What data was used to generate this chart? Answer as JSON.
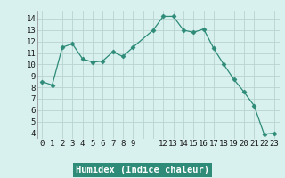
{
  "xlabel": "Humidex (Indice chaleur)",
  "x": [
    0,
    1,
    2,
    3,
    4,
    5,
    6,
    7,
    8,
    9,
    11,
    12,
    13,
    14,
    15,
    16,
    17,
    18,
    19,
    20,
    21,
    22,
    23
  ],
  "y": [
    8.5,
    8.2,
    11.5,
    11.8,
    10.5,
    10.2,
    10.3,
    11.1,
    10.7,
    11.5,
    13.0,
    14.2,
    14.2,
    13.0,
    12.8,
    13.1,
    11.4,
    10.0,
    8.7,
    7.6,
    6.4,
    3.9,
    4.0
  ],
  "line_color": "#2d8b78",
  "marker": "D",
  "marker_size": 2.5,
  "bg_color": "#d8f0ee",
  "grid_color": "#b8d4d0",
  "ylim": [
    3.5,
    14.7
  ],
  "xlim": [
    -0.5,
    23.5
  ],
  "yticks": [
    4,
    5,
    6,
    7,
    8,
    9,
    10,
    11,
    12,
    13,
    14
  ],
  "xticks": [
    0,
    1,
    2,
    3,
    4,
    5,
    6,
    7,
    8,
    9,
    12,
    13,
    14,
    15,
    16,
    17,
    18,
    19,
    20,
    21,
    22,
    23
  ],
  "xtick_labels": [
    "0",
    "1",
    "2",
    "3",
    "4",
    "5",
    "6",
    "7",
    "8",
    "9",
    "12",
    "13",
    "14",
    "15",
    "16",
    "17",
    "18",
    "19",
    "20",
    "21",
    "22",
    "23"
  ],
  "xlabel_fontsize": 7.5,
  "tick_fontsize": 6.5,
  "axis_label_color": "#1a1a1a",
  "bottom_bar_color": "#2d8b78",
  "bottom_bar_text_color": "#ffffff"
}
